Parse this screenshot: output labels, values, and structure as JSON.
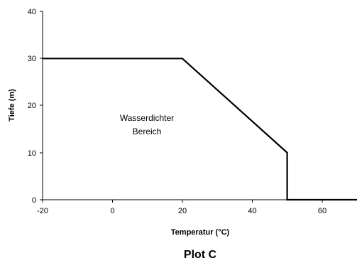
{
  "chart_data": {
    "type": "line",
    "title": "Plot C",
    "xlabel": "Temperatur (°C)",
    "ylabel": "Tiefe (m)",
    "xlim": [
      -20,
      70
    ],
    "ylim": [
      0,
      40
    ],
    "x_ticks": [
      "-20",
      "0",
      "20",
      "40",
      "60"
    ],
    "y_ticks": [
      "0",
      "10",
      "20",
      "30",
      "40"
    ],
    "grid": false,
    "legend": "none",
    "line_color": "#000000",
    "series": [
      {
        "x": [
          -20,
          20,
          50,
          50,
          70
        ],
        "y": [
          30,
          30,
          10,
          0,
          0
        ]
      }
    ],
    "annotation": {
      "line1": "Wasserdichter",
      "line2": "Bereich",
      "x": 5,
      "y": 17
    }
  }
}
